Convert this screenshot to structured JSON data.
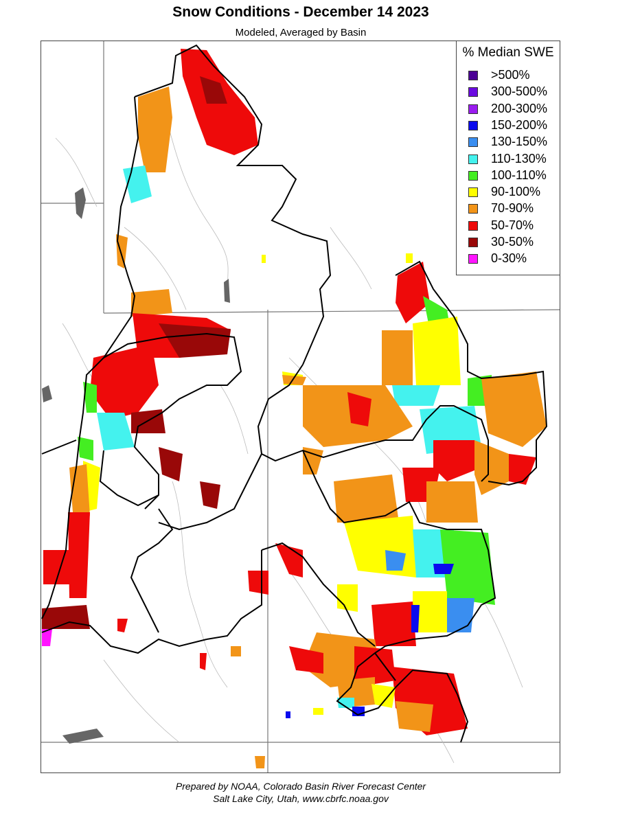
{
  "title": "Snow Conditions - December 14 2023",
  "subtitle": "Modeled, Averaged by Basin",
  "legend": {
    "title": "% Median SWE",
    "items": [
      {
        "label": ">500%",
        "color": "#4b0094"
      },
      {
        "label": "300-500%",
        "color": "#6a0ae0"
      },
      {
        "label": "200-300%",
        "color": "#9a1cf0"
      },
      {
        "label": "150-200%",
        "color": "#0a0aee"
      },
      {
        "label": "130-150%",
        "color": "#3a8ef0"
      },
      {
        "label": "110-130%",
        "color": "#44f2ee"
      },
      {
        "label": "100-110%",
        "color": "#44ee22"
      },
      {
        "label": "90-100%",
        "color": "#ffff00"
      },
      {
        "label": "70-90%",
        "color": "#f29418"
      },
      {
        "label": "50-70%",
        "color": "#ee0a0a"
      },
      {
        "label": "30-50%",
        "color": "#990808"
      },
      {
        "label": "0-30%",
        "color": "#ff14ff"
      }
    ]
  },
  "credit": {
    "line1": "Prepared by NOAA, Colorado Basin River Forecast Center",
    "line2": "Salt Lake City, Utah, www.cbrfc.noaa.gov"
  }
}
